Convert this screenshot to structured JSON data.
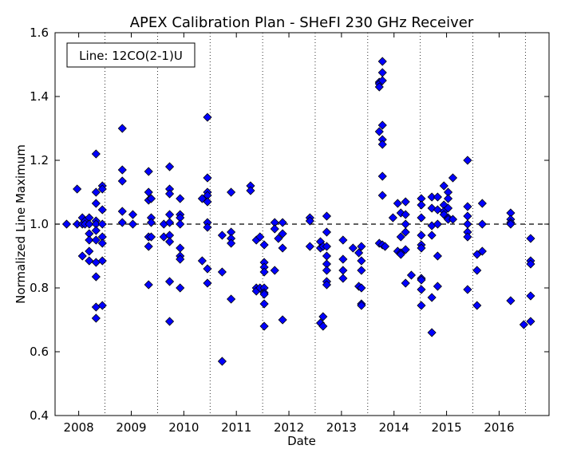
{
  "chart_data": {
    "type": "scatter",
    "title": "APEX Calibration Plan - SHeFI 230 GHz Receiver",
    "xlabel": "Date",
    "ylabel": "Normalized Line Maximum",
    "annotation": "Line: 12CO(2-1)U",
    "xlim": [
      2007.55,
      2016.95
    ],
    "ylim": [
      0.4,
      1.6
    ],
    "yticks": [
      0.4,
      0.6,
      0.8,
      1.0,
      1.2,
      1.4,
      1.6
    ],
    "ytick_labels": [
      "0.4",
      "0.6",
      "0.8",
      "1.0",
      "1.2",
      "1.4",
      "1.6"
    ],
    "xticks": [
      2008,
      2009,
      2010,
      2011,
      2012,
      2013,
      2014,
      2015,
      2016
    ],
    "xtick_labels": [
      "2008",
      "2009",
      "2010",
      "2011",
      "2012",
      "2013",
      "2014",
      "2015",
      "2016"
    ],
    "reference_line_y": 1.0,
    "vertical_dotted_lines_x": [
      2008.5,
      2009.5,
      2010.5,
      2011.5,
      2012.5,
      2013.5,
      2014.5,
      2015.5,
      2016.5
    ],
    "marker_color": "#0000ff",
    "marker_shape": "diamond",
    "grid": false,
    "points": [
      [
        2007.77,
        1.0
      ],
      [
        2007.97,
        1.11
      ],
      [
        2007.97,
        1.0
      ],
      [
        2008.07,
        1.02
      ],
      [
        2008.07,
        0.9
      ],
      [
        2008.07,
        1.0
      ],
      [
        2008.12,
        1.01
      ],
      [
        2008.12,
        1.0
      ],
      [
        2008.2,
        1.02
      ],
      [
        2008.2,
        1.0
      ],
      [
        2008.2,
        0.97
      ],
      [
        2008.2,
        0.95
      ],
      [
        2008.2,
        0.915
      ],
      [
        2008.2,
        0.885
      ],
      [
        2008.33,
        1.22
      ],
      [
        2008.33,
        1.1
      ],
      [
        2008.33,
        1.065
      ],
      [
        2008.33,
        1.01
      ],
      [
        2008.33,
        1.0
      ],
      [
        2008.33,
        0.98
      ],
      [
        2008.33,
        0.95
      ],
      [
        2008.33,
        0.88
      ],
      [
        2008.33,
        0.835
      ],
      [
        2008.33,
        0.74
      ],
      [
        2008.33,
        0.705
      ],
      [
        2008.45,
        1.12
      ],
      [
        2008.45,
        1.11
      ],
      [
        2008.45,
        1.045
      ],
      [
        2008.45,
        1.0
      ],
      [
        2008.45,
        0.96
      ],
      [
        2008.45,
        0.94
      ],
      [
        2008.45,
        0.885
      ],
      [
        2008.45,
        0.745
      ],
      [
        2008.83,
        1.3
      ],
      [
        2008.83,
        1.17
      ],
      [
        2008.83,
        1.135
      ],
      [
        2008.83,
        1.04
      ],
      [
        2008.83,
        1.005
      ],
      [
        2009.03,
        1.03
      ],
      [
        2009.03,
        1.0
      ],
      [
        2009.33,
        1.165
      ],
      [
        2009.33,
        1.1
      ],
      [
        2009.33,
        1.075
      ],
      [
        2009.33,
        0.96
      ],
      [
        2009.33,
        0.93
      ],
      [
        2009.33,
        0.81
      ],
      [
        2009.38,
        1.08
      ],
      [
        2009.38,
        1.02
      ],
      [
        2009.38,
        1.005
      ],
      [
        2009.38,
        0.96
      ],
      [
        2009.62,
        1.0
      ],
      [
        2009.62,
        0.96
      ],
      [
        2009.73,
        1.18
      ],
      [
        2009.73,
        1.11
      ],
      [
        2009.73,
        1.095
      ],
      [
        2009.73,
        1.03
      ],
      [
        2009.73,
        1.005
      ],
      [
        2009.73,
        0.965
      ],
      [
        2009.73,
        0.945
      ],
      [
        2009.73,
        0.82
      ],
      [
        2009.73,
        0.695
      ],
      [
        2009.93,
        1.08
      ],
      [
        2009.93,
        1.03
      ],
      [
        2009.93,
        1.02
      ],
      [
        2009.93,
        1.0
      ],
      [
        2009.93,
        0.925
      ],
      [
        2009.93,
        0.9
      ],
      [
        2009.93,
        0.89
      ],
      [
        2009.93,
        0.8
      ],
      [
        2010.35,
        1.08
      ],
      [
        2010.35,
        0.885
      ],
      [
        2010.45,
        1.335
      ],
      [
        2010.45,
        1.145
      ],
      [
        2010.45,
        1.1
      ],
      [
        2010.45,
        1.09
      ],
      [
        2010.45,
        1.07
      ],
      [
        2010.45,
        1.005
      ],
      [
        2010.45,
        0.99
      ],
      [
        2010.45,
        0.86
      ],
      [
        2010.45,
        0.815
      ],
      [
        2010.73,
        0.965
      ],
      [
        2010.73,
        0.85
      ],
      [
        2010.73,
        0.57
      ],
      [
        2010.9,
        1.1
      ],
      [
        2010.9,
        0.975
      ],
      [
        2010.9,
        0.955
      ],
      [
        2010.9,
        0.94
      ],
      [
        2010.9,
        0.765
      ],
      [
        2011.27,
        1.12
      ],
      [
        2011.27,
        1.105
      ],
      [
        2011.38,
        0.95
      ],
      [
        2011.38,
        0.8
      ],
      [
        2011.38,
        0.79
      ],
      [
        2011.45,
        0.96
      ],
      [
        2011.45,
        0.8
      ],
      [
        2011.53,
        0.935
      ],
      [
        2011.53,
        0.88
      ],
      [
        2011.53,
        0.865
      ],
      [
        2011.53,
        0.85
      ],
      [
        2011.53,
        0.8
      ],
      [
        2011.53,
        0.785
      ],
      [
        2011.53,
        0.78
      ],
      [
        2011.53,
        0.75
      ],
      [
        2011.53,
        0.68
      ],
      [
        2011.73,
        1.005
      ],
      [
        2011.73,
        0.985
      ],
      [
        2011.73,
        0.855
      ],
      [
        2011.8,
        0.955
      ],
      [
        2011.88,
        1.005
      ],
      [
        2011.88,
        0.97
      ],
      [
        2011.88,
        0.925
      ],
      [
        2011.88,
        0.7
      ],
      [
        2012.4,
        1.02
      ],
      [
        2012.4,
        1.01
      ],
      [
        2012.4,
        0.93
      ],
      [
        2012.6,
        0.945
      ],
      [
        2012.6,
        0.925
      ],
      [
        2012.6,
        0.69
      ],
      [
        2012.65,
        0.93
      ],
      [
        2012.65,
        0.71
      ],
      [
        2012.65,
        0.68
      ],
      [
        2012.72,
        1.025
      ],
      [
        2012.72,
        0.975
      ],
      [
        2012.72,
        0.93
      ],
      [
        2012.72,
        0.9
      ],
      [
        2012.72,
        0.875
      ],
      [
        2012.72,
        0.855
      ],
      [
        2012.72,
        0.82
      ],
      [
        2012.72,
        0.81
      ],
      [
        2013.03,
        0.95
      ],
      [
        2013.03,
        0.89
      ],
      [
        2013.03,
        0.855
      ],
      [
        2013.03,
        0.83
      ],
      [
        2013.22,
        0.925
      ],
      [
        2013.33,
        0.91
      ],
      [
        2013.33,
        0.805
      ],
      [
        2013.38,
        0.93
      ],
      [
        2013.38,
        0.885
      ],
      [
        2013.38,
        0.855
      ],
      [
        2013.38,
        0.8
      ],
      [
        2013.38,
        0.75
      ],
      [
        2013.38,
        0.745
      ],
      [
        2013.72,
        1.445
      ],
      [
        2013.72,
        1.44
      ],
      [
        2013.72,
        1.43
      ],
      [
        2013.72,
        1.29
      ],
      [
        2013.72,
        0.94
      ],
      [
        2013.78,
        1.51
      ],
      [
        2013.78,
        1.475
      ],
      [
        2013.78,
        1.45
      ],
      [
        2013.78,
        1.31
      ],
      [
        2013.78,
        1.265
      ],
      [
        2013.78,
        1.25
      ],
      [
        2013.78,
        1.15
      ],
      [
        2013.78,
        1.09
      ],
      [
        2013.78,
        0.935
      ],
      [
        2013.83,
        0.93
      ],
      [
        2013.98,
        1.02
      ],
      [
        2014.07,
        1.065
      ],
      [
        2014.07,
        0.915
      ],
      [
        2014.13,
        1.035
      ],
      [
        2014.13,
        0.96
      ],
      [
        2014.13,
        0.91
      ],
      [
        2014.13,
        0.905
      ],
      [
        2014.22,
        1.07
      ],
      [
        2014.22,
        1.03
      ],
      [
        2014.22,
        1.0
      ],
      [
        2014.22,
        0.975
      ],
      [
        2014.22,
        0.92
      ],
      [
        2014.22,
        0.815
      ],
      [
        2014.33,
        0.84
      ],
      [
        2014.52,
        1.08
      ],
      [
        2014.52,
        1.06
      ],
      [
        2014.52,
        1.02
      ],
      [
        2014.52,
        0.965
      ],
      [
        2014.52,
        0.935
      ],
      [
        2014.52,
        0.925
      ],
      [
        2014.52,
        0.83
      ],
      [
        2014.52,
        0.825
      ],
      [
        2014.52,
        0.795
      ],
      [
        2014.52,
        0.745
      ],
      [
        2014.72,
        1.085
      ],
      [
        2014.72,
        1.05
      ],
      [
        2014.72,
        0.995
      ],
      [
        2014.72,
        0.965
      ],
      [
        2014.72,
        0.77
      ],
      [
        2014.72,
        0.66
      ],
      [
        2014.83,
        1.085
      ],
      [
        2014.83,
        1.045
      ],
      [
        2014.83,
        1.0
      ],
      [
        2014.83,
        0.9
      ],
      [
        2014.83,
        0.805
      ],
      [
        2014.95,
        1.12
      ],
      [
        2014.95,
        1.06
      ],
      [
        2014.95,
        1.04
      ],
      [
        2014.95,
        1.03
      ],
      [
        2015.03,
        1.1
      ],
      [
        2015.03,
        1.08
      ],
      [
        2015.03,
        1.05
      ],
      [
        2015.03,
        1.02
      ],
      [
        2015.03,
        1.015
      ],
      [
        2015.12,
        1.145
      ],
      [
        2015.12,
        1.015
      ],
      [
        2015.4,
        1.2
      ],
      [
        2015.4,
        1.055
      ],
      [
        2015.4,
        1.025
      ],
      [
        2015.4,
        1.0
      ],
      [
        2015.4,
        0.975
      ],
      [
        2015.4,
        0.96
      ],
      [
        2015.4,
        0.795
      ],
      [
        2015.58,
        0.905
      ],
      [
        2015.58,
        0.855
      ],
      [
        2015.58,
        0.745
      ],
      [
        2015.68,
        1.065
      ],
      [
        2015.68,
        1.0
      ],
      [
        2015.68,
        0.915
      ],
      [
        2016.22,
        1.035
      ],
      [
        2016.22,
        1.015
      ],
      [
        2016.22,
        1.005
      ],
      [
        2016.22,
        1.0
      ],
      [
        2016.22,
        0.76
      ],
      [
        2016.47,
        0.685
      ],
      [
        2016.6,
        0.955
      ],
      [
        2016.6,
        0.885
      ],
      [
        2016.6,
        0.875
      ],
      [
        2016.6,
        0.775
      ],
      [
        2016.6,
        0.695
      ]
    ]
  }
}
